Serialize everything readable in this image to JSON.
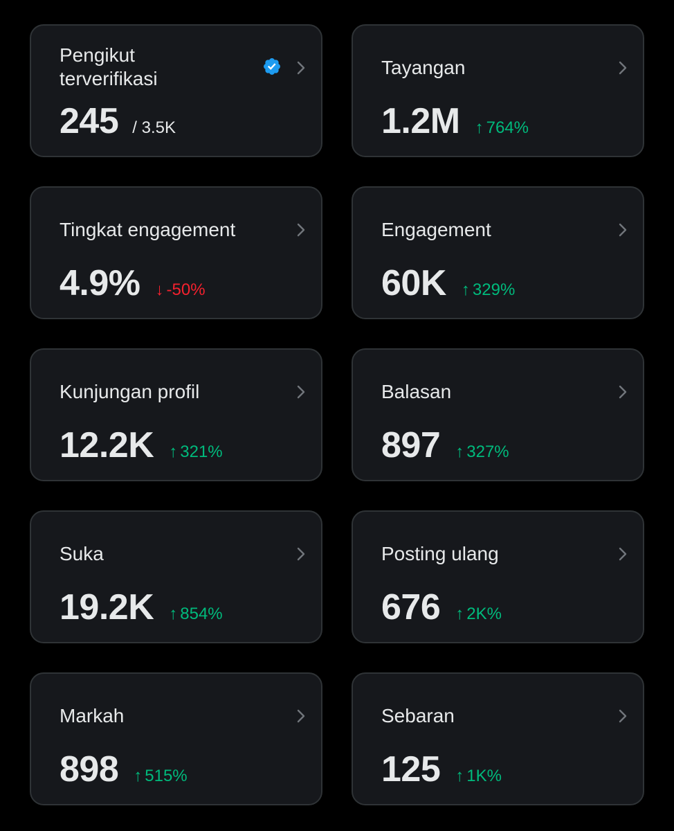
{
  "colors": {
    "background": "#000000",
    "card": "#16181c",
    "border": "#2f3336",
    "text": "#e7e9ea",
    "up": "#00ba7c",
    "down": "#f4212e",
    "verified": "#1d9bf0"
  },
  "cards": {
    "verified_followers": {
      "title": "Pengikut terverifikasi",
      "value": "245",
      "sub": "/ 3.5K",
      "icon": "verified-badge-icon"
    },
    "impressions": {
      "title": "Tayangan",
      "value": "1.2M",
      "delta_arrow": "↑",
      "delta": "764%"
    },
    "engagement_rate": {
      "title": "Tingkat engagement",
      "value": "4.9%",
      "delta_arrow": "↓",
      "delta": "-50%"
    },
    "engagements": {
      "title": "Engagement",
      "value": "60K",
      "delta_arrow": "↑",
      "delta": "329%"
    },
    "profile_visits": {
      "title": "Kunjungan profil",
      "value": "12.2K",
      "delta_arrow": "↑",
      "delta": "321%"
    },
    "replies": {
      "title": "Balasan",
      "value": "897",
      "delta_arrow": "↑",
      "delta": "327%"
    },
    "likes": {
      "title": "Suka",
      "value": "19.2K",
      "delta_arrow": "↑",
      "delta": "854%"
    },
    "reposts": {
      "title": "Posting ulang",
      "value": "676",
      "delta_arrow": "↑",
      "delta": "2K%"
    },
    "bookmarks": {
      "title": "Markah",
      "value": "898",
      "delta_arrow": "↑",
      "delta": "515%"
    },
    "shares": {
      "title": "Sebaran",
      "value": "125",
      "delta_arrow": "↑",
      "delta": "1K%"
    }
  }
}
